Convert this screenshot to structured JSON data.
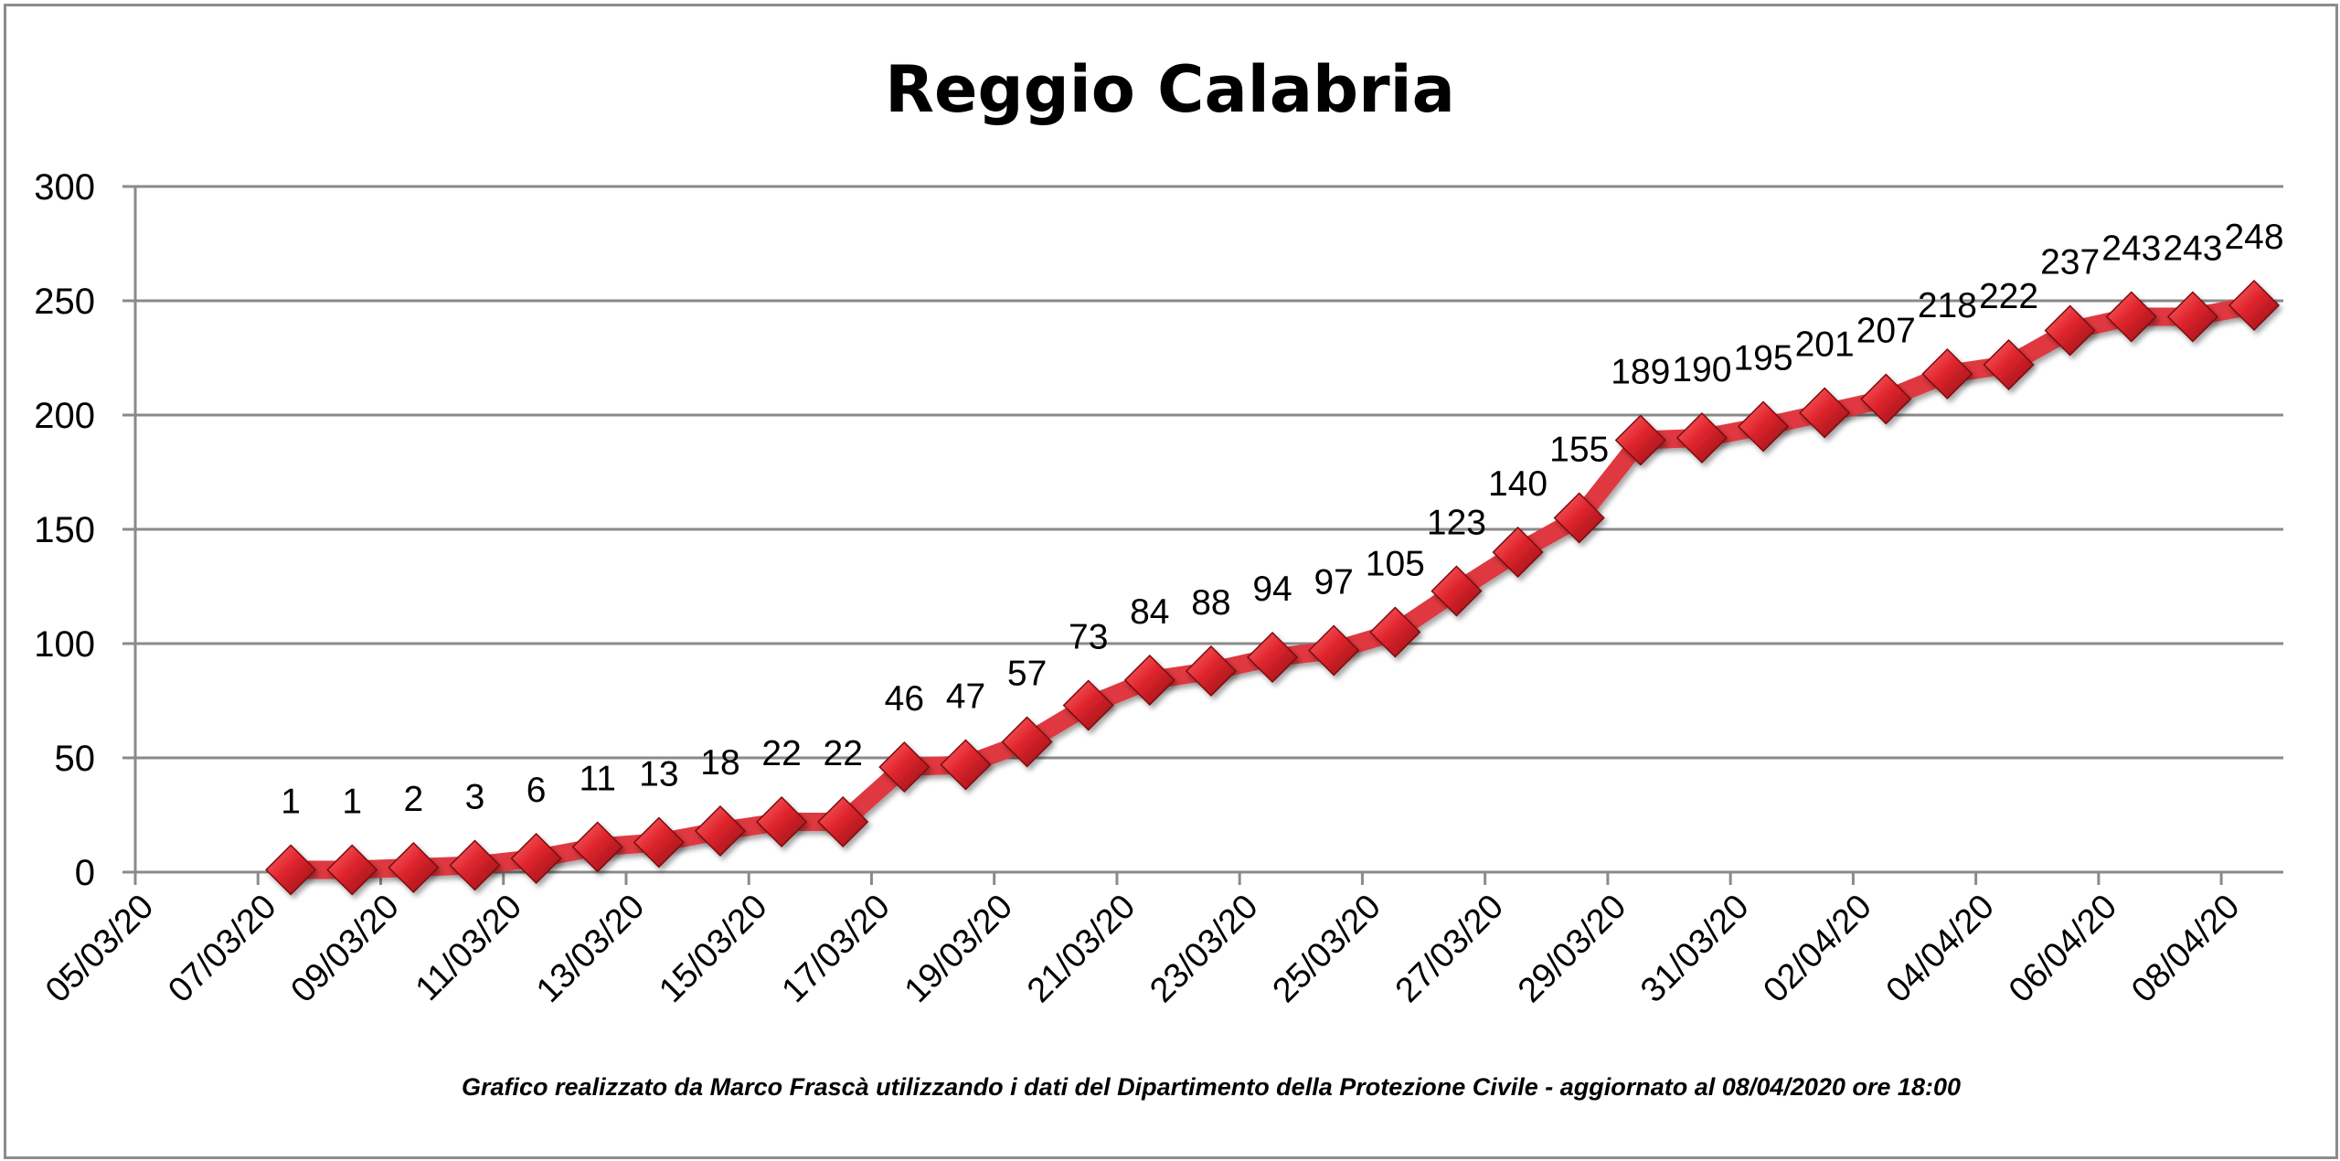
{
  "chart_data": {
    "type": "line",
    "title": "Reggio Calabria",
    "footnote": "Grafico  realizzato da Marco Frascà  utilizzando i dati del Dipartimento  della Protezione Civile - aggiornato al 08/04/2020 ore  18:00",
    "xlabel": "",
    "ylabel": "",
    "ylim": [
      0,
      300
    ],
    "yticks": [
      0,
      50,
      100,
      150,
      200,
      250,
      300
    ],
    "grid": true,
    "x_start": "05/03/20",
    "x_end": "08/04/20",
    "x_tick_labels": [
      "05/03/20",
      "07/03/20",
      "09/03/20",
      "11/03/20",
      "13/03/20",
      "15/03/20",
      "17/03/20",
      "19/03/20",
      "21/03/20",
      "23/03/20",
      "25/03/20",
      "27/03/20",
      "29/03/20",
      "31/03/20",
      "02/04/20",
      "04/04/20",
      "06/04/20",
      "08/04/20"
    ],
    "x": [
      "07/03/20",
      "08/03/20",
      "09/03/20",
      "10/03/20",
      "11/03/20",
      "12/03/20",
      "13/03/20",
      "14/03/20",
      "15/03/20",
      "16/03/20",
      "17/03/20",
      "18/03/20",
      "19/03/20",
      "20/03/20",
      "21/03/20",
      "22/03/20",
      "23/03/20",
      "24/03/20",
      "25/03/20",
      "26/03/20",
      "27/03/20",
      "28/03/20",
      "29/03/20",
      "30/03/20",
      "31/03/20",
      "01/04/20",
      "02/04/20",
      "03/04/20",
      "04/04/20",
      "05/04/20",
      "06/04/20",
      "07/04/20",
      "08/04/20"
    ],
    "values": [
      1,
      1,
      2,
      3,
      6,
      11,
      13,
      18,
      22,
      22,
      46,
      47,
      57,
      73,
      84,
      88,
      94,
      97,
      105,
      123,
      140,
      155,
      189,
      190,
      195,
      201,
      207,
      218,
      222,
      237,
      243,
      243,
      248
    ],
    "series_color": "#d42a33",
    "marker": "diamond"
  }
}
